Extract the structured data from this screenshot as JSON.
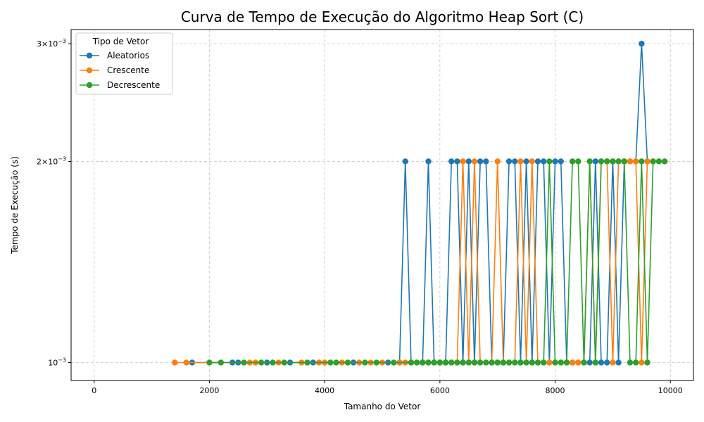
{
  "chart_data": {
    "type": "line",
    "title": "Curva de Tempo de Execução do Algoritmo Heap Sort (C)",
    "xlabel": "Tamanho do Vetor",
    "ylabel": "Tempo de Execução (s)",
    "yscale": "log",
    "xlim": [
      -400,
      10400
    ],
    "ylim": [
      0.00094,
      0.00315
    ],
    "x_ticks": [
      0,
      2000,
      4000,
      6000,
      8000,
      10000
    ],
    "x_tick_labels": [
      "0",
      "2000",
      "4000",
      "6000",
      "8000",
      "10000"
    ],
    "y_ticks": [
      0.001,
      0.002,
      0.003
    ],
    "y_tick_labels": [
      {
        "base": "10",
        "exp": "−3",
        "coef": ""
      },
      {
        "base": "10",
        "exp": "−3",
        "coef": "2×"
      },
      {
        "base": "10",
        "exp": "−3",
        "coef": "3×"
      }
    ],
    "grid": true,
    "legend": {
      "title": "Tipo de Vetor",
      "position": "top-left"
    },
    "series": [
      {
        "name": "Aleatorios",
        "color": "#1f77b4",
        "points": [
          [
            1700,
            0.001
          ],
          [
            2400,
            0.001
          ],
          [
            2500,
            0.001
          ],
          [
            3000,
            0.001
          ],
          [
            3400,
            0.001
          ],
          [
            3800,
            0.001
          ],
          [
            4500,
            0.001
          ],
          [
            5100,
            0.001
          ],
          [
            5300,
            0.001
          ],
          [
            5400,
            0.002
          ],
          [
            5500,
            0.001
          ],
          [
            5700,
            0.001
          ],
          [
            5800,
            0.002
          ],
          [
            5900,
            0.001
          ],
          [
            6000,
            0.001
          ],
          [
            6100,
            0.001
          ],
          [
            6200,
            0.002
          ],
          [
            6300,
            0.002
          ],
          [
            6400,
            0.001
          ],
          [
            6500,
            0.002
          ],
          [
            6600,
            0.001
          ],
          [
            6700,
            0.002
          ],
          [
            6800,
            0.002
          ],
          [
            6900,
            0.001
          ],
          [
            7000,
            0.001
          ],
          [
            7100,
            0.001
          ],
          [
            7200,
            0.002
          ],
          [
            7300,
            0.002
          ],
          [
            7400,
            0.001
          ],
          [
            7500,
            0.002
          ],
          [
            7600,
            0.001
          ],
          [
            7700,
            0.002
          ],
          [
            7800,
            0.002
          ],
          [
            7900,
            0.001
          ],
          [
            8000,
            0.002
          ],
          [
            8100,
            0.002
          ],
          [
            8200,
            0.001
          ],
          [
            8300,
            0.001
          ],
          [
            8400,
            0.001
          ],
          [
            8500,
            0.001
          ],
          [
            8600,
            0.001
          ],
          [
            8700,
            0.002
          ],
          [
            8800,
            0.001
          ],
          [
            8900,
            0.001
          ],
          [
            9000,
            0.002
          ],
          [
            9100,
            0.001
          ],
          [
            9200,
            0.002
          ],
          [
            9300,
            0.002
          ],
          [
            9400,
            0.002
          ],
          [
            9500,
            0.003
          ],
          [
            9600,
            0.002
          ]
        ]
      },
      {
        "name": "Crescente",
        "color": "#ff7f0e",
        "points": [
          [
            1400,
            0.001
          ],
          [
            1600,
            0.001
          ],
          [
            2700,
            0.001
          ],
          [
            2800,
            0.001
          ],
          [
            3200,
            0.001
          ],
          [
            3600,
            0.001
          ],
          [
            3900,
            0.001
          ],
          [
            4000,
            0.001
          ],
          [
            4300,
            0.001
          ],
          [
            4600,
            0.001
          ],
          [
            4800,
            0.001
          ],
          [
            5000,
            0.001
          ],
          [
            5300,
            0.001
          ],
          [
            5400,
            0.001
          ],
          [
            5600,
            0.001
          ],
          [
            5800,
            0.001
          ],
          [
            6000,
            0.001
          ],
          [
            6200,
            0.001
          ],
          [
            6300,
            0.001
          ],
          [
            6400,
            0.002
          ],
          [
            6500,
            0.001
          ],
          [
            6600,
            0.002
          ],
          [
            6700,
            0.001
          ],
          [
            6800,
            0.001
          ],
          [
            6900,
            0.001
          ],
          [
            7000,
            0.002
          ],
          [
            7100,
            0.001
          ],
          [
            7200,
            0.001
          ],
          [
            7300,
            0.001
          ],
          [
            7400,
            0.002
          ],
          [
            7500,
            0.001
          ],
          [
            7600,
            0.002
          ],
          [
            7700,
            0.001
          ],
          [
            7800,
            0.001
          ],
          [
            7900,
            0.001
          ],
          [
            8000,
            0.001
          ],
          [
            8100,
            0.001
          ],
          [
            8200,
            0.001
          ],
          [
            8300,
            0.001
          ],
          [
            8400,
            0.001
          ],
          [
            8500,
            0.001
          ],
          [
            8600,
            0.002
          ],
          [
            8700,
            0.001
          ],
          [
            8800,
            0.002
          ],
          [
            8900,
            0.002
          ],
          [
            9000,
            0.001
          ],
          [
            9100,
            0.002
          ],
          [
            9200,
            0.002
          ],
          [
            9300,
            0.002
          ],
          [
            9400,
            0.002
          ],
          [
            9500,
            0.001
          ],
          [
            9600,
            0.002
          ],
          [
            9700,
            0.002
          ],
          [
            9800,
            0.002
          ],
          [
            9900,
            0.002
          ]
        ]
      },
      {
        "name": "Decrescente",
        "color": "#2ca02c",
        "points": [
          [
            2000,
            0.001
          ],
          [
            2200,
            0.001
          ],
          [
            2600,
            0.001
          ],
          [
            2900,
            0.001
          ],
          [
            3100,
            0.001
          ],
          [
            3300,
            0.001
          ],
          [
            3700,
            0.001
          ],
          [
            4100,
            0.001
          ],
          [
            4200,
            0.001
          ],
          [
            4400,
            0.001
          ],
          [
            4700,
            0.001
          ],
          [
            4900,
            0.001
          ],
          [
            5200,
            0.001
          ],
          [
            5500,
            0.001
          ],
          [
            5600,
            0.001
          ],
          [
            5700,
            0.001
          ],
          [
            5800,
            0.001
          ],
          [
            5900,
            0.001
          ],
          [
            6000,
            0.001
          ],
          [
            6100,
            0.001
          ],
          [
            6200,
            0.001
          ],
          [
            6300,
            0.001
          ],
          [
            6400,
            0.001
          ],
          [
            6500,
            0.001
          ],
          [
            6600,
            0.001
          ],
          [
            6700,
            0.001
          ],
          [
            6800,
            0.001
          ],
          [
            6900,
            0.001
          ],
          [
            7000,
            0.001
          ],
          [
            7100,
            0.001
          ],
          [
            7200,
            0.001
          ],
          [
            7300,
            0.001
          ],
          [
            7400,
            0.001
          ],
          [
            7500,
            0.001
          ],
          [
            7600,
            0.001
          ],
          [
            7700,
            0.001
          ],
          [
            7800,
            0.001
          ],
          [
            7900,
            0.002
          ],
          [
            8000,
            0.001
          ],
          [
            8100,
            0.001
          ],
          [
            8200,
            0.001
          ],
          [
            8300,
            0.002
          ],
          [
            8400,
            0.002
          ],
          [
            8500,
            0.001
          ],
          [
            8600,
            0.002
          ],
          [
            8700,
            0.001
          ],
          [
            8800,
            0.002
          ],
          [
            8900,
            0.002
          ],
          [
            9000,
            0.002
          ],
          [
            9100,
            0.002
          ],
          [
            9200,
            0.002
          ],
          [
            9300,
            0.001
          ],
          [
            9400,
            0.001
          ],
          [
            9500,
            0.002
          ],
          [
            9600,
            0.001
          ],
          [
            9700,
            0.002
          ],
          [
            9800,
            0.002
          ],
          [
            9900,
            0.002
          ]
        ]
      }
    ]
  }
}
